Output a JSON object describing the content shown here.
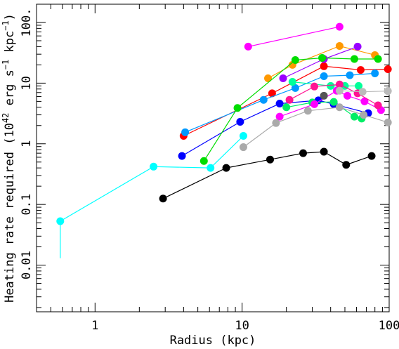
{
  "chart_data": {
    "type": "scatter",
    "xlabel": "Radius (kpc)",
    "ylabel_parts": [
      "Heating rate required (10",
      "42",
      " erg s",
      "−1",
      " kpc",
      "−1",
      ")"
    ],
    "x_scale": "log",
    "y_scale": "log",
    "xlim": [
      0.4,
      100
    ],
    "ylim": [
      0.0017,
      200
    ],
    "x_tick_labels": [
      "1",
      "10",
      "100"
    ],
    "y_tick_labels": [
      "0.01",
      "0.1",
      "1",
      "10",
      "100."
    ],
    "series": [
      {
        "color": "#00ffff",
        "x": [
          0.58,
          2.5,
          6.1,
          10.2
        ],
        "y": [
          0.053,
          0.42,
          0.4,
          1.35
        ],
        "yerr_low": [
          0.013,
          null,
          null,
          null
        ]
      },
      {
        "color": "#000000",
        "x": [
          2.9,
          7.8,
          15.5,
          26,
          36,
          51,
          76
        ],
        "y": [
          0.125,
          0.4,
          0.55,
          0.7,
          0.74,
          0.45,
          0.63
        ]
      },
      {
        "color": "#ff0000",
        "x": [
          4.0,
          16,
          36,
          64,
          98
        ],
        "y": [
          1.35,
          6.8,
          19,
          16.5,
          17
        ]
      },
      {
        "color": "#0099ff",
        "x": [
          4.1,
          14,
          23,
          36,
          54,
          80
        ],
        "y": [
          1.55,
          5.3,
          8.3,
          13,
          13.5,
          14.5
        ]
      },
      {
        "color": "#0000ff",
        "x": [
          3.9,
          9.7,
          18,
          33,
          42,
          72
        ],
        "y": [
          0.63,
          2.3,
          4.6,
          5.2,
          4.5,
          3.2
        ]
      },
      {
        "color": "#ff00ff",
        "x": [
          11,
          46
        ],
        "y": [
          40,
          85
        ]
      },
      {
        "color": "#ff9900",
        "x": [
          15,
          22,
          46,
          80
        ],
        "y": [
          12,
          20,
          41,
          29
        ]
      },
      {
        "color": "#9900ff",
        "x": [
          19,
          36,
          61
        ],
        "y": [
          12,
          25,
          40
        ]
      },
      {
        "color": "#00dd00",
        "x": [
          5.5,
          9.3,
          23,
          35,
          58,
          84
        ],
        "y": [
          0.52,
          3.9,
          24,
          26,
          25,
          25
        ]
      },
      {
        "color": "#00ee66",
        "x": [
          20,
          30,
          42,
          58,
          65
        ],
        "y": [
          4.0,
          4.8,
          4.9,
          2.8,
          2.6
        ]
      },
      {
        "color": "#00ff99",
        "x": [
          22,
          40,
          50,
          62
        ],
        "y": [
          10.5,
          9.0,
          9.0,
          9.0
        ]
      },
      {
        "color": "#ff00ff",
        "x": [
          18,
          31,
          44,
          52,
          68,
          88
        ],
        "y": [
          2.8,
          4.5,
          7.5,
          6.2,
          5.0,
          3.6
        ]
      },
      {
        "color": "#ff1493",
        "x": [
          21,
          31,
          46,
          61,
          84
        ],
        "y": [
          5.3,
          8.8,
          9.5,
          6.8,
          4.3
        ]
      },
      {
        "color": "#aaaaaa",
        "x": [
          10.2,
          17,
          28,
          46,
          67,
          98
        ],
        "y": [
          0.88,
          2.2,
          3.5,
          4.0,
          3.0,
          2.25
        ]
      },
      {
        "color": "#bbbbbb",
        "x": [
          46,
          66,
          98
        ],
        "y": [
          7.5,
          7.2,
          7.4
        ]
      },
      {
        "color": "#555555",
        "x": [
          36
        ],
        "y": [
          6.2
        ]
      }
    ]
  }
}
